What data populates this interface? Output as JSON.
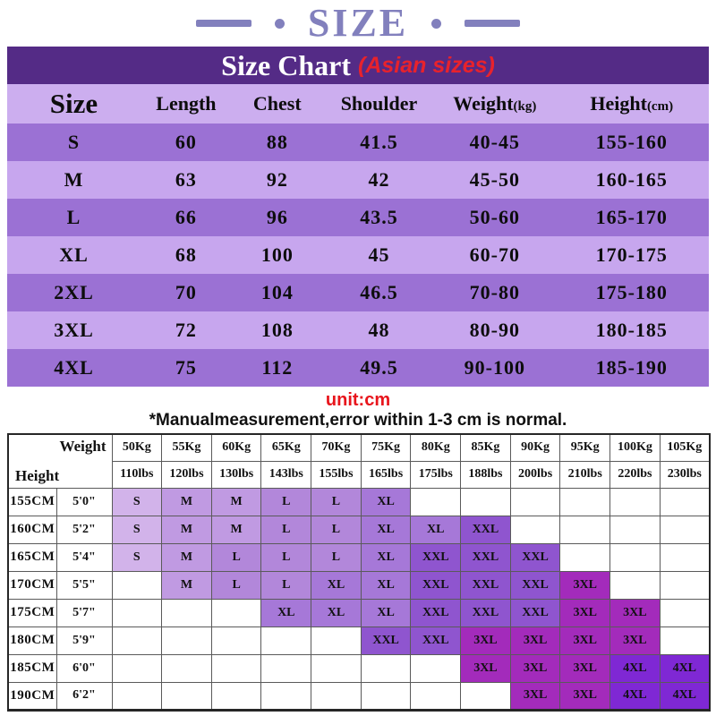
{
  "masthead": {
    "title": "SIZE"
  },
  "banner": {
    "title": "Size Chart",
    "subtitle": "(Asian sizes)"
  },
  "size_table": {
    "headers": [
      {
        "label": "Size",
        "unit": ""
      },
      {
        "label": "Length",
        "unit": ""
      },
      {
        "label": "Chest",
        "unit": ""
      },
      {
        "label": "Shoulder",
        "unit": ""
      },
      {
        "label": "Weight",
        "unit": "(kg)"
      },
      {
        "label": "Height",
        "unit": "(cm)"
      }
    ],
    "rows": [
      [
        "S",
        "60",
        "88",
        "41.5",
        "40-45",
        "155-160"
      ],
      [
        "M",
        "63",
        "92",
        "42",
        "45-50",
        "160-165"
      ],
      [
        "L",
        "66",
        "96",
        "43.5",
        "50-60",
        "165-170"
      ],
      [
        "XL",
        "68",
        "100",
        "45",
        "60-70",
        "170-175"
      ],
      [
        "2XL",
        "70",
        "104",
        "46.5",
        "70-80",
        "175-180"
      ],
      [
        "3XL",
        "72",
        "108",
        "48",
        "80-90",
        "180-185"
      ],
      [
        "4XL",
        "75",
        "112",
        "49.5",
        "90-100",
        "185-190"
      ]
    ]
  },
  "notes": {
    "unit": "unit:cm",
    "measure": "*Manualmeasurement,error within 1-3 cm is normal."
  },
  "fit_table": {
    "corner": {
      "top_label": "Weight",
      "bottom_label": "Height"
    },
    "weight_kg": [
      "50Kg",
      "55Kg",
      "60Kg",
      "65Kg",
      "70Kg",
      "75Kg",
      "80Kg",
      "85Kg",
      "90Kg",
      "95Kg",
      "100Kg",
      "105Kg"
    ],
    "weight_lbs": [
      "110lbs",
      "120lbs",
      "130lbs",
      "143lbs",
      "155lbs",
      "165lbs",
      "175lbs",
      "188lbs",
      "200lbs",
      "210lbs",
      "220lbs",
      "230lbs"
    ],
    "rows": [
      {
        "cm": "155CM",
        "ft": "5'0\"",
        "cells": [
          "S",
          "M",
          "M",
          "L",
          "L",
          "XL",
          "",
          "",
          "",
          "",
          "",
          ""
        ]
      },
      {
        "cm": "160CM",
        "ft": "5'2\"",
        "cells": [
          "S",
          "M",
          "M",
          "L",
          "L",
          "XL",
          "XL",
          "XXL",
          "",
          "",
          "",
          ""
        ]
      },
      {
        "cm": "165CM",
        "ft": "5'4\"",
        "cells": [
          "S",
          "M",
          "L",
          "L",
          "L",
          "XL",
          "XXL",
          "XXL",
          "XXL",
          "",
          "",
          ""
        ]
      },
      {
        "cm": "170CM",
        "ft": "5'5\"",
        "cells": [
          "",
          "M",
          "L",
          "L",
          "XL",
          "XL",
          "XXL",
          "XXL",
          "XXL",
          "3XL",
          "",
          ""
        ]
      },
      {
        "cm": "175CM",
        "ft": "5'7\"",
        "cells": [
          "",
          "",
          "",
          "XL",
          "XL",
          "XL",
          "XXL",
          "XXL",
          "XXL",
          "3XL",
          "3XL",
          ""
        ]
      },
      {
        "cm": "180CM",
        "ft": "5'9\"",
        "cells": [
          "",
          "",
          "",
          "",
          "",
          "XXL",
          "XXL",
          "3XL",
          "3XL",
          "3XL",
          "3XL",
          ""
        ]
      },
      {
        "cm": "185CM",
        "ft": "6'0\"",
        "cells": [
          "",
          "",
          "",
          "",
          "",
          "",
          "",
          "3XL",
          "3XL",
          "3XL",
          "4XL",
          "4XL"
        ]
      },
      {
        "cm": "190CM",
        "ft": "6'2\"",
        "cells": [
          "",
          "",
          "",
          "",
          "",
          "",
          "",
          "",
          "3XL",
          "3XL",
          "4XL",
          "4XL"
        ]
      }
    ]
  },
  "colors": {
    "masthead_text": "#8280bd",
    "banner_bg": "#542b86",
    "banner_subtitle": "#e8222c",
    "header_row_bg": "#ccaeef",
    "row_light": "#c7a6ee",
    "row_medium": "#9b71d4",
    "unit_text": "#e8151c",
    "size_cells": {
      "S": "#d2b3ea",
      "M": "#c09ae2",
      "L": "#b287da",
      "XL": "#a678d8",
      "XXL": "#8f55cf",
      "3XL": "#a32bbb",
      "4XL": "#7f28d4"
    }
  }
}
